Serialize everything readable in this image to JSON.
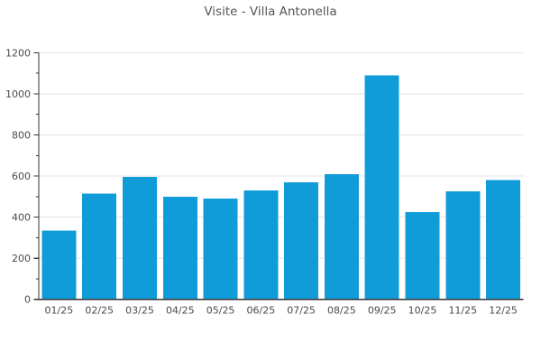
{
  "page": {
    "background": "#ffffff"
  },
  "chart_data": {
    "type": "bar",
    "title": "Visite - Villa Antonella",
    "categories": [
      "01/25",
      "02/25",
      "03/25",
      "04/25",
      "05/25",
      "06/25",
      "07/25",
      "08/25",
      "09/25",
      "10/25",
      "11/25",
      "12/25"
    ],
    "values": [
      335,
      515,
      595,
      500,
      490,
      530,
      570,
      610,
      1090,
      425,
      525,
      580
    ],
    "xlabel": "",
    "ylabel": "",
    "ylim": [
      0,
      1200
    ],
    "yticks": [
      0,
      200,
      400,
      600,
      800,
      1000,
      1200
    ],
    "yminor_step": 100,
    "grid": true,
    "legend": "none",
    "colors": {
      "bar": "#109cd8",
      "grid": "#e3e3e3",
      "axis": "#333333",
      "tick_text": "#4a4a4a",
      "title_text": "#565656"
    }
  }
}
